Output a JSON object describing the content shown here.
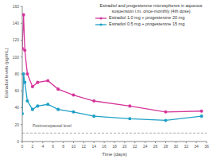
{
  "chart_data": {
    "type": "line",
    "title": "Estradiol and progesterone microspheres in aqueous suspension i.m. once-monthly (4th dose)",
    "x_label": "Time (days)",
    "y_label": "Estradiol levels (pg/mL)",
    "x": [
      0,
      0.25,
      0.5,
      1,
      2,
      3,
      5,
      7,
      10,
      14,
      21,
      28,
      35
    ],
    "series": [
      {
        "name": "Estradiol 1.0 mg + progesterone 20 mg",
        "color": "#d6369b",
        "marker": "circle",
        "values": [
          110,
          150,
          108,
          80,
          65,
          70,
          72,
          62,
          55,
          48,
          42,
          35,
          36
        ]
      },
      {
        "name": "Estradiol 0.5 mg + progesterone 15 mg",
        "color": "#1fa0c6",
        "marker": "circle",
        "values": [
          33,
          80,
          70,
          48,
          38,
          42,
          44,
          38,
          35,
          30,
          27,
          25,
          30
        ]
      }
    ],
    "xlim": [
      0,
      36
    ],
    "ylim": [
      0,
      160
    ],
    "xticks": [
      0,
      2,
      4,
      6,
      8,
      10,
      12,
      14,
      16,
      18,
      20,
      22,
      24,
      26,
      28,
      30,
      32,
      34,
      36
    ],
    "yticks": [
      0,
      20,
      40,
      60,
      80,
      100,
      120,
      140,
      160
    ],
    "grid": false,
    "annotations": [
      {
        "text": "Postmenopausal level",
        "y": 10,
        "line_style": "dashed"
      }
    ]
  }
}
